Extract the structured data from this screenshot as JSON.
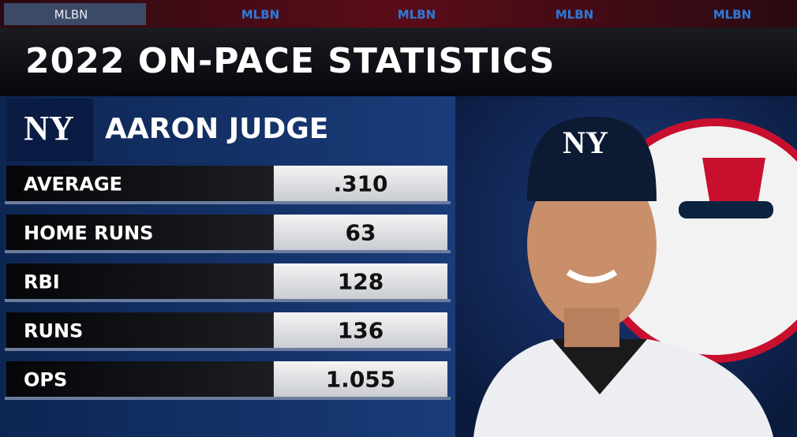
{
  "header": {
    "tabs": [
      "MLBN",
      "MLBN",
      "MLBN",
      "MLBN",
      "MLBN"
    ],
    "title": "2022 ON-PACE STATISTICS"
  },
  "player": {
    "name": "AARON JUDGE"
  },
  "table": {
    "rows": [
      [
        "AVERAGE",
        ".310"
      ],
      [
        "HOME RUNS",
        "63"
      ],
      [
        "RBI",
        "128"
      ],
      [
        "RUNS",
        "136"
      ],
      [
        "OPS",
        "1.055"
      ]
    ]
  }
}
